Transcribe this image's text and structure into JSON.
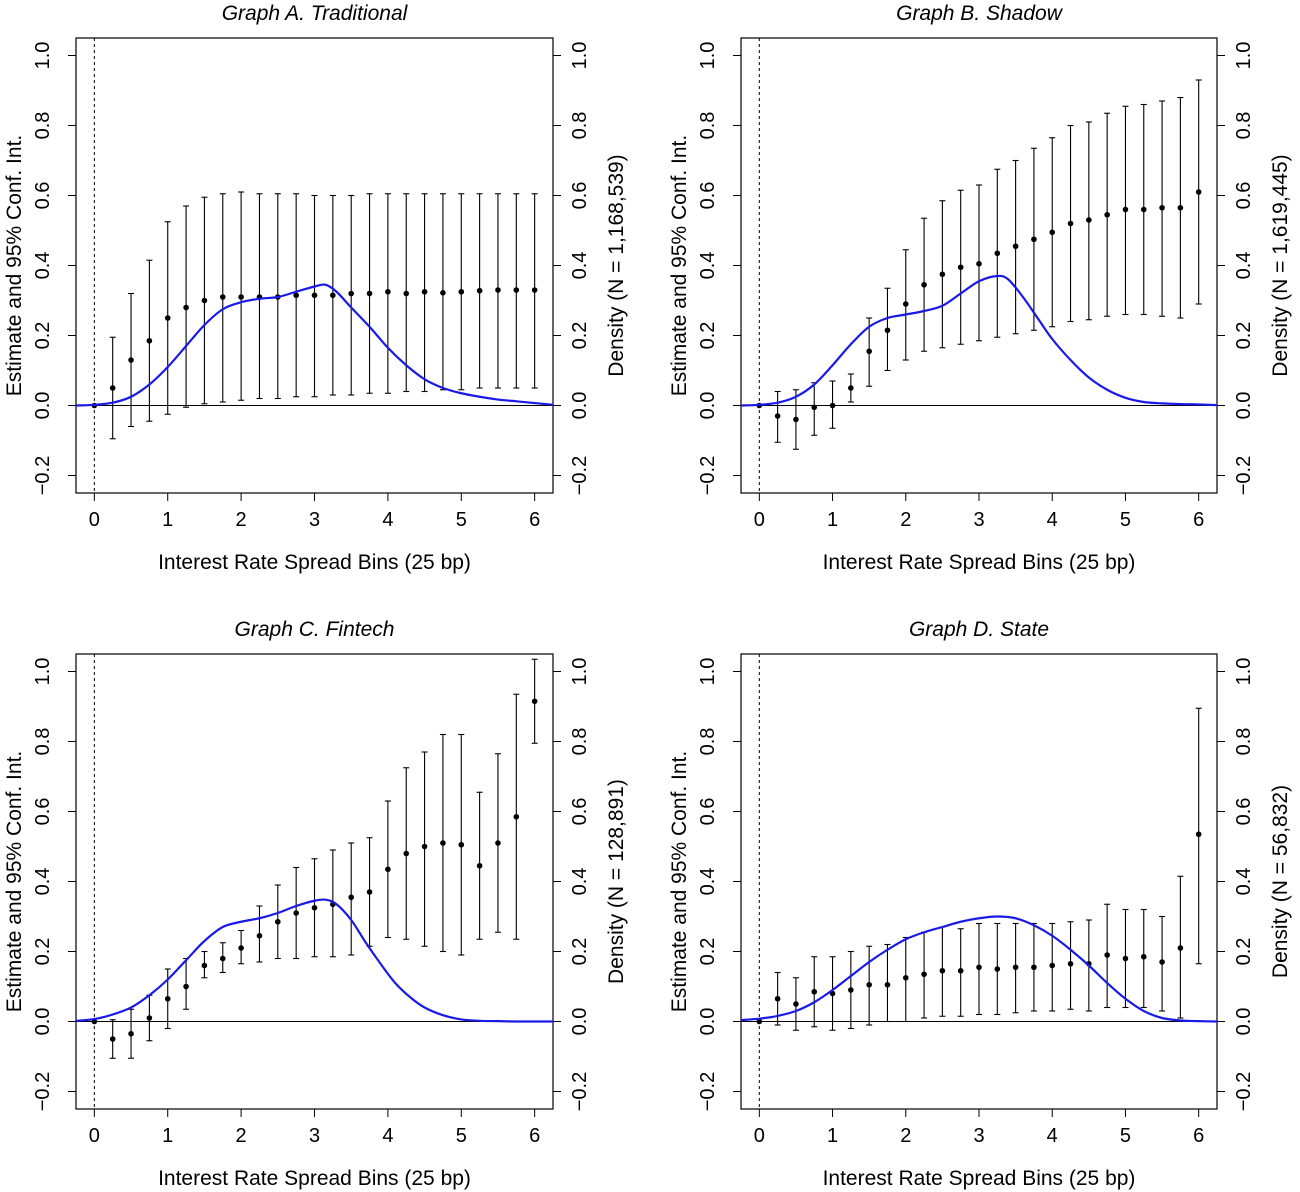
{
  "chart_data": [
    {
      "type": "scatter",
      "title": "Graph A. Traditional",
      "xlabel": "Interest Rate Spread Bins (25 bp)",
      "ylabel": "Estimate and 95% Conf. Int.",
      "y2label": "Density (N = 1,168,539)",
      "xlim": [
        -0.25,
        6.25
      ],
      "ylim": [
        -0.25,
        1.05
      ],
      "xticks": [
        0,
        1,
        2,
        3,
        4,
        5,
        6
      ],
      "yticks": [
        -0.2,
        0.0,
        0.2,
        0.4,
        0.6,
        0.8,
        1.0
      ],
      "ytick_labels": [
        "−0.2",
        "0.0",
        "0.2",
        "0.4",
        "0.6",
        "0.8",
        "1.0"
      ],
      "x": [
        0.25,
        0.5,
        0.75,
        1.0,
        1.25,
        1.5,
        1.75,
        2.0,
        2.25,
        2.5,
        2.75,
        3.0,
        3.25,
        3.5,
        3.75,
        4.0,
        4.25,
        4.5,
        4.75,
        5.0,
        5.25,
        5.5,
        5.75,
        6.0
      ],
      "estimate": [
        0.05,
        0.13,
        0.185,
        0.25,
        0.28,
        0.3,
        0.31,
        0.31,
        0.31,
        0.31,
        0.315,
        0.315,
        0.315,
        0.32,
        0.32,
        0.325,
        0.32,
        0.325,
        0.322,
        0.325,
        0.328,
        0.33,
        0.33,
        0.33
      ],
      "ci_low": [
        -0.095,
        -0.06,
        -0.045,
        -0.025,
        -0.005,
        0.005,
        0.01,
        0.015,
        0.02,
        0.02,
        0.025,
        0.025,
        0.03,
        0.03,
        0.035,
        0.035,
        0.04,
        0.04,
        0.045,
        0.045,
        0.05,
        0.05,
        0.05,
        0.05
      ],
      "ci_high": [
        0.195,
        0.32,
        0.415,
        0.525,
        0.57,
        0.595,
        0.605,
        0.61,
        0.605,
        0.605,
        0.605,
        0.6,
        0.6,
        0.6,
        0.605,
        0.605,
        0.605,
        0.605,
        0.605,
        0.605,
        0.605,
        0.605,
        0.605,
        0.605
      ],
      "density": {
        "x": [
          -0.25,
          0,
          0.25,
          0.5,
          0.75,
          1.0,
          1.25,
          1.5,
          1.75,
          2.0,
          2.25,
          2.5,
          2.75,
          3.0,
          3.15,
          3.3,
          3.5,
          3.75,
          4.0,
          4.25,
          4.5,
          4.75,
          5.0,
          5.25,
          5.5,
          5.75,
          6.0,
          6.25
        ],
        "y": [
          0.0,
          0.002,
          0.008,
          0.025,
          0.06,
          0.11,
          0.17,
          0.23,
          0.275,
          0.295,
          0.305,
          0.31,
          0.325,
          0.34,
          0.345,
          0.325,
          0.28,
          0.225,
          0.165,
          0.115,
          0.075,
          0.05,
          0.035,
          0.025,
          0.017,
          0.012,
          0.007,
          0.002
        ]
      }
    },
    {
      "type": "scatter",
      "title": "Graph B. Shadow",
      "xlabel": "Interest Rate Spread Bins (25 bp)",
      "ylabel": "Estimate and 95% Conf. Int.",
      "y2label": "Density (N = 1,619,445)",
      "xlim": [
        -0.25,
        6.25
      ],
      "ylim": [
        -0.25,
        1.05
      ],
      "xticks": [
        0,
        1,
        2,
        3,
        4,
        5,
        6
      ],
      "yticks": [
        -0.2,
        0.0,
        0.2,
        0.4,
        0.6,
        0.8,
        1.0
      ],
      "ytick_labels": [
        "−0.2",
        "0.0",
        "0.2",
        "0.4",
        "0.6",
        "0.8",
        "1.0"
      ],
      "x": [
        0.25,
        0.5,
        0.75,
        1.0,
        1.25,
        1.5,
        1.75,
        2.0,
        2.25,
        2.5,
        2.75,
        3.0,
        3.25,
        3.5,
        3.75,
        4.0,
        4.25,
        4.5,
        4.75,
        5.0,
        5.25,
        5.5,
        5.75,
        6.0
      ],
      "estimate": [
        -0.03,
        -0.04,
        -0.005,
        0.0,
        0.05,
        0.155,
        0.215,
        0.29,
        0.345,
        0.375,
        0.395,
        0.405,
        0.435,
        0.455,
        0.475,
        0.495,
        0.52,
        0.53,
        0.545,
        0.56,
        0.56,
        0.565,
        0.565,
        0.61
      ],
      "ci_low": [
        -0.105,
        -0.125,
        -0.085,
        -0.065,
        0.01,
        0.055,
        0.1,
        0.13,
        0.155,
        0.165,
        0.175,
        0.185,
        0.195,
        0.205,
        0.215,
        0.225,
        0.24,
        0.245,
        0.255,
        0.26,
        0.26,
        0.255,
        0.25,
        0.29
      ],
      "ci_high": [
        0.04,
        0.045,
        0.065,
        0.07,
        0.09,
        0.25,
        0.335,
        0.445,
        0.535,
        0.585,
        0.615,
        0.63,
        0.675,
        0.7,
        0.735,
        0.765,
        0.8,
        0.81,
        0.835,
        0.855,
        0.86,
        0.87,
        0.88,
        0.93
      ],
      "density": {
        "x": [
          -0.25,
          0,
          0.25,
          0.5,
          0.75,
          1.0,
          1.25,
          1.5,
          1.75,
          2.0,
          2.25,
          2.5,
          2.75,
          3.0,
          3.25,
          3.4,
          3.6,
          3.8,
          4.0,
          4.25,
          4.5,
          4.75,
          5.0,
          5.25,
          5.5,
          5.75,
          6.0,
          6.25
        ],
        "y": [
          0.0,
          0.002,
          0.008,
          0.025,
          0.06,
          0.115,
          0.175,
          0.225,
          0.25,
          0.26,
          0.27,
          0.285,
          0.32,
          0.355,
          0.37,
          0.36,
          0.31,
          0.25,
          0.19,
          0.13,
          0.08,
          0.045,
          0.022,
          0.01,
          0.006,
          0.004,
          0.003,
          0.001
        ]
      }
    },
    {
      "type": "scatter",
      "title": "Graph C. Fintech",
      "xlabel": "Interest Rate Spread Bins (25 bp)",
      "ylabel": "Estimate and 95% Conf. Int.",
      "y2label": "Density (N = 128,891)",
      "xlim": [
        -0.25,
        6.25
      ],
      "ylim": [
        -0.25,
        1.05
      ],
      "xticks": [
        0,
        1,
        2,
        3,
        4,
        5,
        6
      ],
      "yticks": [
        -0.2,
        0.0,
        0.2,
        0.4,
        0.6,
        0.8,
        1.0
      ],
      "ytick_labels": [
        "−0.2",
        "0.0",
        "0.2",
        "0.4",
        "0.6",
        "0.8",
        "1.0"
      ],
      "x": [
        0.25,
        0.5,
        0.75,
        1.0,
        1.25,
        1.5,
        1.75,
        2.0,
        2.25,
        2.5,
        2.75,
        3.0,
        3.25,
        3.5,
        3.75,
        4.0,
        4.25,
        4.5,
        4.75,
        5.0,
        5.25,
        5.5,
        5.75,
        6.0
      ],
      "estimate": [
        -0.05,
        -0.035,
        0.01,
        0.065,
        0.1,
        0.16,
        0.18,
        0.21,
        0.245,
        0.285,
        0.31,
        0.325,
        0.335,
        0.355,
        0.37,
        0.435,
        0.48,
        0.5,
        0.51,
        0.505,
        0.445,
        0.51,
        0.585,
        0.915
      ],
      "ci_low": [
        -0.105,
        -0.105,
        -0.055,
        -0.02,
        0.035,
        0.125,
        0.14,
        0.165,
        0.17,
        0.18,
        0.18,
        0.185,
        0.185,
        0.19,
        0.215,
        0.24,
        0.235,
        0.215,
        0.2,
        0.19,
        0.235,
        0.255,
        0.235,
        0.795
      ],
      "ci_high": [
        0.005,
        0.035,
        0.075,
        0.15,
        0.18,
        0.2,
        0.225,
        0.26,
        0.33,
        0.39,
        0.44,
        0.465,
        0.49,
        0.51,
        0.525,
        0.63,
        0.725,
        0.77,
        0.82,
        0.82,
        0.655,
        0.765,
        0.935,
        1.035
      ],
      "density": {
        "x": [
          -0.25,
          0,
          0.25,
          0.5,
          0.75,
          1.0,
          1.25,
          1.5,
          1.75,
          2.0,
          2.25,
          2.5,
          2.75,
          3.0,
          3.15,
          3.3,
          3.5,
          3.7,
          3.9,
          4.1,
          4.3,
          4.5,
          4.75,
          5.0,
          5.25,
          5.5,
          5.75,
          6.0,
          6.25
        ],
        "y": [
          0.002,
          0.007,
          0.02,
          0.04,
          0.075,
          0.12,
          0.175,
          0.23,
          0.27,
          0.285,
          0.295,
          0.31,
          0.33,
          0.345,
          0.348,
          0.335,
          0.29,
          0.225,
          0.165,
          0.11,
          0.07,
          0.04,
          0.018,
          0.006,
          0.002,
          0.001,
          0.0,
          0.0,
          0.0
        ]
      }
    },
    {
      "type": "scatter",
      "title": "Graph D. State",
      "xlabel": "Interest Rate Spread Bins (25 bp)",
      "ylabel": "Estimate and 95% Conf. Int.",
      "y2label": "Density (N = 56,832)",
      "xlim": [
        -0.25,
        6.25
      ],
      "ylim": [
        -0.25,
        1.05
      ],
      "xticks": [
        0,
        1,
        2,
        3,
        4,
        5,
        6
      ],
      "yticks": [
        -0.2,
        0.0,
        0.2,
        0.4,
        0.6,
        0.8,
        1.0
      ],
      "ytick_labels": [
        "−0.2",
        "0.0",
        "0.2",
        "0.4",
        "0.6",
        "0.8",
        "1.0"
      ],
      "x": [
        0.25,
        0.5,
        0.75,
        1.0,
        1.25,
        1.5,
        1.75,
        2.0,
        2.25,
        2.5,
        2.75,
        3.0,
        3.25,
        3.5,
        3.75,
        4.0,
        4.25,
        4.5,
        4.75,
        5.0,
        5.25,
        5.5,
        5.75,
        6.0
      ],
      "estimate": [
        0.065,
        0.05,
        0.085,
        0.08,
        0.09,
        0.105,
        0.105,
        0.125,
        0.135,
        0.145,
        0.145,
        0.155,
        0.15,
        0.155,
        0.155,
        0.16,
        0.165,
        0.165,
        0.19,
        0.18,
        0.185,
        0.17,
        0.21,
        0.535
      ],
      "ci_low": [
        -0.01,
        -0.025,
        -0.015,
        -0.025,
        -0.02,
        -0.01,
        0.0,
        0.0,
        0.01,
        0.015,
        0.015,
        0.02,
        0.02,
        0.025,
        0.03,
        0.03,
        0.035,
        0.03,
        0.04,
        0.04,
        0.04,
        0.03,
        0.01,
        0.165
      ],
      "ci_high": [
        0.14,
        0.125,
        0.185,
        0.185,
        0.2,
        0.215,
        0.22,
        0.24,
        0.255,
        0.27,
        0.265,
        0.28,
        0.28,
        0.28,
        0.28,
        0.28,
        0.285,
        0.29,
        0.335,
        0.32,
        0.32,
        0.3,
        0.415,
        0.895
      ],
      "density": {
        "x": [
          -0.25,
          0,
          0.25,
          0.5,
          0.75,
          1.0,
          1.25,
          1.5,
          1.75,
          2.0,
          2.25,
          2.5,
          2.75,
          3.0,
          3.25,
          3.5,
          3.75,
          4.0,
          4.25,
          4.5,
          4.75,
          5.0,
          5.25,
          5.5,
          5.75,
          6.0,
          6.25
        ],
        "y": [
          0.004,
          0.008,
          0.016,
          0.03,
          0.055,
          0.09,
          0.13,
          0.17,
          0.205,
          0.235,
          0.255,
          0.27,
          0.285,
          0.295,
          0.3,
          0.295,
          0.275,
          0.245,
          0.205,
          0.16,
          0.11,
          0.065,
          0.03,
          0.01,
          0.003,
          0.001,
          0.0
        ]
      }
    }
  ]
}
